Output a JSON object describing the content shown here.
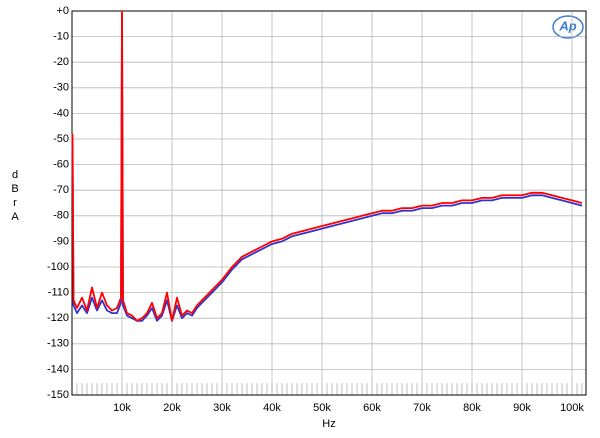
{
  "chart_data": {
    "type": "line",
    "ylabel": "dBr A",
    "xlabel": "Hz",
    "logo": "Ap",
    "xlim": [
      0,
      102800
    ],
    "ylim": [
      -150,
      0
    ],
    "xticks": [
      {
        "value": 10000,
        "label": "10k"
      },
      {
        "value": 20000,
        "label": "20k"
      },
      {
        "value": 30000,
        "label": "30k"
      },
      {
        "value": 40000,
        "label": "40k"
      },
      {
        "value": 50000,
        "label": "50k"
      },
      {
        "value": 60000,
        "label": "60k"
      },
      {
        "value": 70000,
        "label": "70k"
      },
      {
        "value": 80000,
        "label": "80k"
      },
      {
        "value": 90000,
        "label": "90k"
      },
      {
        "value": 100000,
        "label": "100k"
      }
    ],
    "yticks": [
      {
        "value": 0,
        "label": "+0"
      },
      -10,
      -20,
      -30,
      -40,
      -50,
      -60,
      -70,
      -80,
      -90,
      -100,
      -110,
      -120,
      -130,
      -140,
      -150
    ],
    "grid": true,
    "x": [
      100,
      300,
      1000,
      2000,
      3000,
      4000,
      5000,
      6000,
      7000,
      8000,
      9000,
      9800,
      10000,
      10200,
      11000,
      12000,
      13000,
      14000,
      15000,
      16000,
      17000,
      18000,
      19000,
      20000,
      21000,
      22000,
      23000,
      24000,
      25000,
      26000,
      27000,
      28000,
      30000,
      32000,
      34000,
      36000,
      38000,
      40000,
      42000,
      44000,
      46000,
      48000,
      50000,
      52000,
      54000,
      56000,
      58000,
      60000,
      62000,
      64000,
      66000,
      68000,
      70000,
      72000,
      74000,
      76000,
      78000,
      80000,
      82000,
      84000,
      86000,
      88000,
      90000,
      92000,
      94000,
      96000,
      98000,
      100000,
      102000
    ],
    "series": [
      {
        "color": "#3333cc",
        "values": [
          -50,
          -115,
          -118,
          -115,
          -118,
          -112,
          -117,
          -113,
          -117,
          -118,
          -118,
          -114,
          -1,
          -115,
          -119,
          -120,
          -121,
          -121,
          -119,
          -116,
          -121,
          -119,
          -113,
          -121,
          -115,
          -120,
          -118,
          -119,
          -116,
          -114,
          -112,
          -110,
          -106,
          -101,
          -97,
          -95,
          -93,
          -91,
          -90,
          -88,
          -87,
          -86,
          -85,
          -84,
          -83,
          -82,
          -81,
          -80,
          -79,
          -79,
          -78,
          -78,
          -77,
          -77,
          -76,
          -76,
          -75,
          -75,
          -74,
          -74,
          -73,
          -73,
          -73,
          -72,
          -72,
          -73,
          -74,
          -75,
          -76
        ]
      },
      {
        "color": "#ff0000",
        "values": [
          -48,
          -113,
          -116,
          -112,
          -117,
          -108,
          -116,
          -110,
          -115,
          -117,
          -116,
          -112,
          0,
          -113,
          -118,
          -119,
          -121,
          -120,
          -118,
          -114,
          -120,
          -118,
          -110,
          -121,
          -112,
          -119,
          -117,
          -118,
          -115,
          -113,
          -111,
          -109,
          -105,
          -100,
          -96,
          -94,
          -92,
          -90,
          -89,
          -87,
          -86,
          -85,
          -84,
          -83,
          -82,
          -81,
          -80,
          -79,
          -78,
          -78,
          -77,
          -77,
          -76,
          -76,
          -75,
          -75,
          -74,
          -74,
          -73,
          -73,
          -72,
          -72,
          -72,
          -71,
          -71,
          -72,
          -73,
          -74,
          -75
        ]
      }
    ]
  }
}
